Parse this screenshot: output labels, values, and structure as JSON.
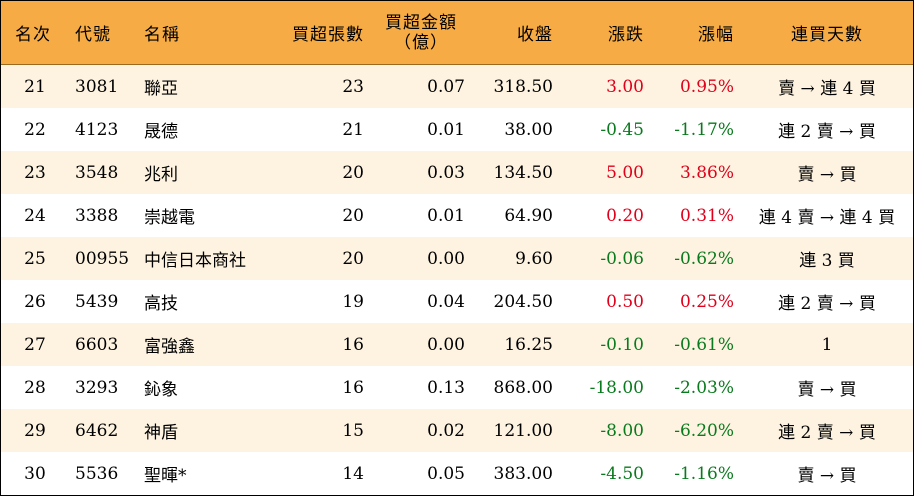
{
  "headers": {
    "rank": "名次",
    "code": "代號",
    "name": "名稱",
    "net_buy_lots": "買超張數",
    "net_buy_amount_line1": "買超金額",
    "net_buy_amount_line2": "（億）",
    "close": "收盤",
    "change": "漲跌",
    "pct_change": "漲幅",
    "consecutive_days": "連買天數"
  },
  "colors": {
    "header_bg": "#f6ab44",
    "alt_row_bg": "#fdf3e0",
    "up": "#e0001b",
    "down": "#0a7a1e"
  },
  "rows": [
    {
      "rank": "21",
      "code": "3081",
      "name": "聯亞",
      "lots": "23",
      "amount": "0.07",
      "close": "318.50",
      "change": "3.00",
      "pct": "0.95%",
      "trend": "up",
      "days": "賣 → 連 4 買"
    },
    {
      "rank": "22",
      "code": "4123",
      "name": "晟德",
      "lots": "21",
      "amount": "0.01",
      "close": "38.00",
      "change": "-0.45",
      "pct": "-1.17%",
      "trend": "down",
      "days": "連 2 賣 → 買"
    },
    {
      "rank": "23",
      "code": "3548",
      "name": "兆利",
      "lots": "20",
      "amount": "0.03",
      "close": "134.50",
      "change": "5.00",
      "pct": "3.86%",
      "trend": "up",
      "days": "賣 → 買"
    },
    {
      "rank": "24",
      "code": "3388",
      "name": "崇越電",
      "lots": "20",
      "amount": "0.01",
      "close": "64.90",
      "change": "0.20",
      "pct": "0.31%",
      "trend": "up",
      "days": "連 4 賣 → 連 4 買"
    },
    {
      "rank": "25",
      "code": "00955",
      "name": "中信日本商社",
      "lots": "20",
      "amount": "0.00",
      "close": "9.60",
      "change": "-0.06",
      "pct": "-0.62%",
      "trend": "down",
      "days": "連 3 買"
    },
    {
      "rank": "26",
      "code": "5439",
      "name": "高技",
      "lots": "19",
      "amount": "0.04",
      "close": "204.50",
      "change": "0.50",
      "pct": "0.25%",
      "trend": "up",
      "days": "連 2 賣 → 買"
    },
    {
      "rank": "27",
      "code": "6603",
      "name": "富強鑫",
      "lots": "16",
      "amount": "0.00",
      "close": "16.25",
      "change": "-0.10",
      "pct": "-0.61%",
      "trend": "down",
      "days": "1"
    },
    {
      "rank": "28",
      "code": "3293",
      "name": "鈊象",
      "lots": "16",
      "amount": "0.13",
      "close": "868.00",
      "change": "-18.00",
      "pct": "-2.03%",
      "trend": "down",
      "days": "賣 → 買"
    },
    {
      "rank": "29",
      "code": "6462",
      "name": "神盾",
      "lots": "15",
      "amount": "0.02",
      "close": "121.00",
      "change": "-8.00",
      "pct": "-6.20%",
      "trend": "down",
      "days": "連 2 賣 → 買"
    },
    {
      "rank": "30",
      "code": "5536",
      "name": "聖暉*",
      "lots": "14",
      "amount": "0.05",
      "close": "383.00",
      "change": "-4.50",
      "pct": "-1.16%",
      "trend": "down",
      "days": "賣 → 買"
    }
  ]
}
